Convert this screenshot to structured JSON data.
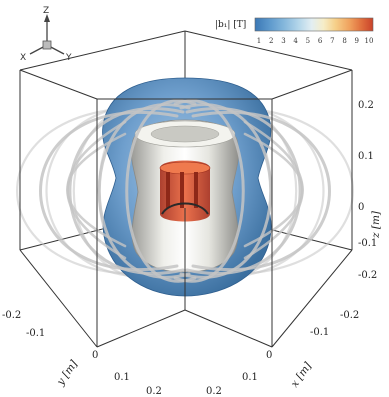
{
  "triad": {
    "z": "Z",
    "x": "X",
    "y": "Y"
  },
  "colorbar": {
    "title": "|b₁| [T]",
    "ticks": [
      "1",
      "2",
      "3",
      "4",
      "5",
      "6",
      "7",
      "8",
      "9",
      "10"
    ],
    "colors": [
      "#3b78b5",
      "#5c98cc",
      "#86b8dc",
      "#b4d6ea",
      "#e2eef2",
      "#f6edc8",
      "#f6d08a",
      "#f0a25e",
      "#e0703e",
      "#c9422a"
    ]
  },
  "axes": {
    "z_label": "z [m]",
    "y_label": "y [m]",
    "x_label": "x [m]",
    "z_ticks": [
      "0.2",
      "0.1",
      "0",
      "-0.1",
      "-0.2"
    ],
    "y_ticks": [
      "-0.2",
      "-0.1",
      "0",
      "0.1",
      "0.2"
    ],
    "x_ticks": [
      "0",
      "-0.1",
      "-0.2",
      "0.1",
      "0.2"
    ]
  },
  "colors": {
    "outer_isosurface": "#5b8fbf",
    "inner_isosurface": "#dcdcd6",
    "core_isosurface": "#d2482c",
    "field_lines": "#c4c4c4",
    "box": "#333333"
  }
}
